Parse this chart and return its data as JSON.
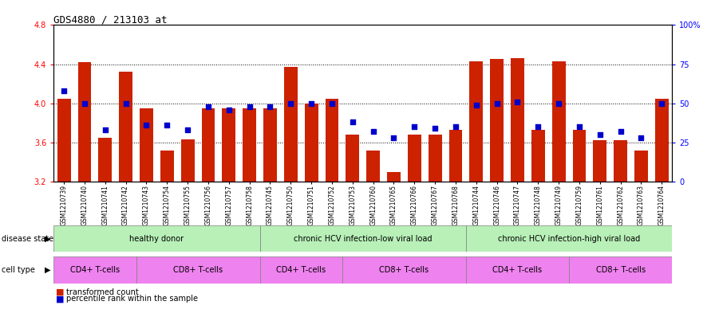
{
  "title": "GDS4880 / 213103_at",
  "samples": [
    "GSM1210739",
    "GSM1210740",
    "GSM1210741",
    "GSM1210742",
    "GSM1210743",
    "GSM1210754",
    "GSM1210755",
    "GSM1210756",
    "GSM1210757",
    "GSM1210758",
    "GSM1210745",
    "GSM1210750",
    "GSM1210751",
    "GSM1210752",
    "GSM1210753",
    "GSM1210760",
    "GSM1210765",
    "GSM1210766",
    "GSM1210767",
    "GSM1210768",
    "GSM1210744",
    "GSM1210746",
    "GSM1210747",
    "GSM1210748",
    "GSM1210749",
    "GSM1210759",
    "GSM1210761",
    "GSM1210762",
    "GSM1210763",
    "GSM1210764"
  ],
  "bar_values": [
    4.05,
    4.42,
    3.65,
    4.32,
    3.95,
    3.52,
    3.63,
    3.95,
    3.95,
    3.95,
    3.95,
    4.37,
    4.0,
    4.05,
    3.68,
    3.52,
    3.3,
    3.68,
    3.68,
    3.73,
    4.43,
    4.45,
    4.46,
    3.73,
    4.43,
    3.73,
    3.62,
    3.62,
    3.52,
    4.05
  ],
  "percentile_values": [
    58,
    50,
    33,
    50,
    36,
    36,
    33,
    48,
    46,
    48,
    48,
    50,
    50,
    50,
    38,
    32,
    28,
    35,
    34,
    35,
    49,
    50,
    51,
    35,
    50,
    35,
    30,
    32,
    28,
    50
  ],
  "bar_color": "#CC2200",
  "dot_color": "#0000CC",
  "ylim_left": [
    3.2,
    4.8
  ],
  "ylim_right": [
    0,
    100
  ],
  "yticks_left": [
    3.2,
    3.6,
    4.0,
    4.4,
    4.8
  ],
  "yticks_right": [
    0,
    25,
    50,
    75,
    100
  ],
  "ytick_labels_right": [
    "0",
    "25",
    "50",
    "75",
    "100%"
  ],
  "grid_values": [
    3.6,
    4.0,
    4.4
  ],
  "bar_baseline": 3.2,
  "background_color": "#FFFFFF",
  "plot_bg_color": "#FFFFFF",
  "ds_groups": [
    {
      "label": "healthy donor",
      "start": 0,
      "end": 10,
      "color": "#b8f0b8"
    },
    {
      "label": "chronic HCV infection-low viral load",
      "start": 10,
      "end": 20,
      "color": "#b8f0b8"
    },
    {
      "label": "chronic HCV infection-high viral load",
      "start": 20,
      "end": 30,
      "color": "#b8f0b8"
    }
  ],
  "ct_groups": [
    {
      "label": "CD4+ T-cells",
      "start": 0,
      "end": 4,
      "color": "#EE82EE"
    },
    {
      "label": "CD8+ T-cells",
      "start": 4,
      "end": 10,
      "color": "#EE82EE"
    },
    {
      "label": "CD4+ T-cells",
      "start": 10,
      "end": 14,
      "color": "#EE82EE"
    },
    {
      "label": "CD8+ T-cells",
      "start": 14,
      "end": 20,
      "color": "#EE82EE"
    },
    {
      "label": "CD4+ T-cells",
      "start": 20,
      "end": 25,
      "color": "#EE82EE"
    },
    {
      "label": "CD8+ T-cells",
      "start": 25,
      "end": 30,
      "color": "#EE82EE"
    }
  ]
}
